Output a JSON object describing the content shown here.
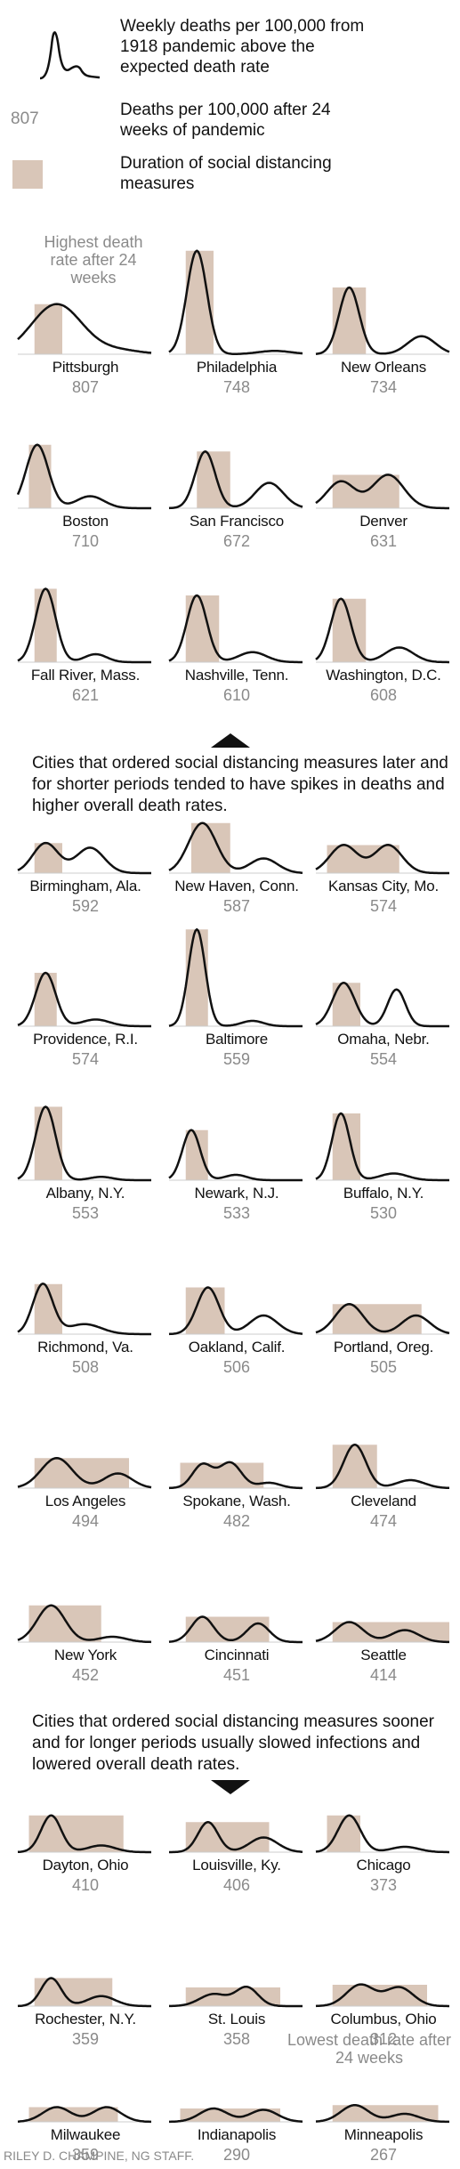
{
  "legend": {
    "curve_text": "Weekly deaths per 100,000 from 1918 pandemic above the expected death rate",
    "number_sample": "807",
    "number_text": "Deaths per 100,000 after 24 weeks of pandemic",
    "box_text": "Duration of social distancing measures"
  },
  "notes": {
    "highest": "Highest death rate after 24 weeks",
    "lowest": "Lowest death rate after 24 weeks",
    "later": "Cities that ordered social distancing measures later and for shorter periods tended to have spikes in deaths and higher overall death rates.",
    "sooner": "Cities that ordered social distancing measures sooner and for longer periods usually slowed infections and lowered overall death rates."
  },
  "credit": "RILEY D. CHAMPINE, NG STAFF.",
  "colors": {
    "curve": "#111111",
    "distancing_box": "#d9c6b8",
    "rate_text": "#8a8a8a",
    "baseline": "#cccccc"
  },
  "chart_data": {
    "type": "line",
    "x_unit": "weeks",
    "xlim": [
      0,
      24
    ],
    "ylabel": "Weekly deaths per 100,000 above expected",
    "cities": [
      {
        "name": "Pittsburgh",
        "rate": 807,
        "distancing": [
          3,
          8
        ],
        "peaks": [
          [
            7,
            75,
            4.5
          ],
          [
            18,
            6,
            4
          ]
        ]
      },
      {
        "name": "Philadelphia",
        "rate": 748,
        "distancing": [
          3,
          8
        ],
        "peaks": [
          [
            5,
            155,
            1.8
          ],
          [
            19,
            5,
            3
          ]
        ]
      },
      {
        "name": "New Orleans",
        "rate": 734,
        "distancing": [
          3,
          9
        ],
        "peaks": [
          [
            6,
            100,
            1.8
          ],
          [
            19,
            27,
            2.5
          ]
        ]
      },
      {
        "name": "Boston",
        "rate": 710,
        "distancing": [
          2,
          6
        ],
        "peaks": [
          [
            3.5,
            95,
            2
          ],
          [
            13,
            18,
            2.5
          ]
        ]
      },
      {
        "name": "San Francisco",
        "rate": 672,
        "distancing": [
          5,
          11
        ],
        "peaks": [
          [
            6.5,
            85,
            1.8
          ],
          [
            18,
            38,
            2.5
          ]
        ]
      },
      {
        "name": "Denver",
        "rate": 631,
        "distancing": [
          3,
          15
        ],
        "peaks": [
          [
            4.5,
            40,
            2.5
          ],
          [
            13,
            50,
            2.8
          ]
        ]
      },
      {
        "name": "Fall River, Mass.",
        "rate": 621,
        "distancing": [
          3,
          7
        ],
        "peaks": [
          [
            5,
            110,
            1.8
          ],
          [
            14,
            12,
            2
          ]
        ]
      },
      {
        "name": "Nashville, Tenn.",
        "rate": 610,
        "distancing": [
          3,
          9
        ],
        "peaks": [
          [
            5,
            100,
            1.8
          ],
          [
            15,
            15,
            2.5
          ]
        ]
      },
      {
        "name": "Washington, D.C.",
        "rate": 608,
        "distancing": [
          3,
          9
        ],
        "peaks": [
          [
            4.5,
            95,
            1.8
          ],
          [
            15,
            22,
            2.5
          ]
        ]
      },
      {
        "name": "Birmingham, Ala.",
        "rate": 592,
        "distancing": [
          3,
          8
        ],
        "peaks": [
          [
            5,
            45,
            2.3
          ],
          [
            13,
            38,
            2.5
          ]
        ]
      },
      {
        "name": "New Haven, Conn.",
        "rate": 587,
        "distancing": [
          4,
          11
        ],
        "peaks": [
          [
            6,
            75,
            2.5
          ],
          [
            17,
            22,
            2.5
          ]
        ]
      },
      {
        "name": "Kansas City, Mo.",
        "rate": 574,
        "distancing": [
          2,
          15
        ],
        "peaks": [
          [
            5,
            42,
            2.5
          ],
          [
            13,
            42,
            2.5
          ]
        ]
      },
      {
        "name": "Providence, R.I.",
        "rate": 574,
        "distancing": [
          3,
          7
        ],
        "peaks": [
          [
            5,
            80,
            1.8
          ],
          [
            14,
            10,
            2.5
          ]
        ]
      },
      {
        "name": "Baltimore",
        "rate": 559,
        "distancing": [
          3,
          7
        ],
        "peaks": [
          [
            5,
            145,
            1.5
          ],
          [
            15,
            8,
            2
          ]
        ]
      },
      {
        "name": "Omaha, Nebr.",
        "rate": 554,
        "distancing": [
          3,
          8
        ],
        "peaks": [
          [
            5,
            65,
            2
          ],
          [
            14.5,
            55,
            1.6
          ]
        ]
      },
      {
        "name": "Albany, N.Y.",
        "rate": 553,
        "distancing": [
          3,
          8
        ],
        "peaks": [
          [
            5,
            110,
            1.8
          ],
          [
            15,
            5,
            2
          ]
        ]
      },
      {
        "name": "Newark, N.J.",
        "rate": 533,
        "distancing": [
          3,
          7
        ],
        "peaks": [
          [
            4,
            75,
            1.6
          ],
          [
            12,
            8,
            2
          ]
        ]
      },
      {
        "name": "Buffalo, N.Y.",
        "rate": 530,
        "distancing": [
          3,
          8
        ],
        "peaks": [
          [
            4.5,
            100,
            1.6
          ],
          [
            14,
            10,
            2.5
          ]
        ]
      },
      {
        "name": "Richmond, Va.",
        "rate": 508,
        "distancing": [
          3,
          8
        ],
        "peaks": [
          [
            4.5,
            75,
            1.8
          ],
          [
            12,
            15,
            3
          ]
        ]
      },
      {
        "name": "Oakland, Calif.",
        "rate": 506,
        "distancing": [
          3,
          10
        ],
        "peaks": [
          [
            7,
            70,
            2
          ],
          [
            17,
            28,
            2.5
          ]
        ]
      },
      {
        "name": "Portland, Oreg.",
        "rate": 505,
        "distancing": [
          3,
          19
        ],
        "peaks": [
          [
            6,
            45,
            2.5
          ],
          [
            18,
            28,
            2.5
          ]
        ]
      },
      {
        "name": "Los Angeles",
        "rate": 494,
        "distancing": [
          3,
          20
        ],
        "peaks": [
          [
            7,
            45,
            2.8
          ],
          [
            18,
            22,
            2.5
          ]
        ]
      },
      {
        "name": "Spokane, Wash.",
        "rate": 482,
        "distancing": [
          2,
          17
        ],
        "peaks": [
          [
            6,
            35,
            1.8
          ],
          [
            11,
            38,
            2
          ],
          [
            18,
            8,
            2
          ]
        ]
      },
      {
        "name": "Cleveland",
        "rate": 474,
        "distancing": [
          3,
          11
        ],
        "peaks": [
          [
            7,
            65,
            2
          ],
          [
            17,
            12,
            2.5
          ]
        ]
      },
      {
        "name": "New York",
        "rate": 452,
        "distancing": [
          2,
          15
        ],
        "peaks": [
          [
            6,
            55,
            2.5
          ],
          [
            17,
            8,
            2.5
          ]
        ]
      },
      {
        "name": "Cincinnati",
        "rate": 451,
        "distancing": [
          3,
          18
        ],
        "peaks": [
          [
            6,
            38,
            2
          ],
          [
            16,
            28,
            2
          ]
        ]
      },
      {
        "name": "Seattle",
        "rate": 414,
        "distancing": [
          3,
          24
        ],
        "peaks": [
          [
            6,
            30,
            2.5
          ],
          [
            16,
            18,
            2.5
          ]
        ]
      },
      {
        "name": "Dayton, Ohio",
        "rate": 410,
        "distancing": [
          2,
          19
        ],
        "peaks": [
          [
            6,
            55,
            1.8
          ],
          [
            15,
            10,
            2.5
          ]
        ]
      },
      {
        "name": "Louisville, Ky.",
        "rate": 406,
        "distancing": [
          3,
          18
        ],
        "peaks": [
          [
            7,
            45,
            1.8
          ],
          [
            17,
            22,
            2.5
          ]
        ]
      },
      {
        "name": "Chicago",
        "rate": 373,
        "distancing": [
          2,
          8
        ],
        "peaks": [
          [
            6,
            55,
            2
          ],
          [
            16,
            8,
            2.5
          ]
        ]
      },
      {
        "name": "Rochester, N.Y.",
        "rate": 359,
        "distancing": [
          3,
          17
        ],
        "peaks": [
          [
            6,
            42,
            1.8
          ],
          [
            15,
            15,
            2.5
          ]
        ]
      },
      {
        "name": "St. Louis",
        "rate": 358,
        "distancing": [
          3,
          20
        ],
        "peaks": [
          [
            8,
            18,
            2.5
          ],
          [
            14,
            28,
            2
          ]
        ]
      },
      {
        "name": "Columbus, Ohio",
        "rate": 312,
        "distancing": [
          3,
          20
        ],
        "peaks": [
          [
            8,
            32,
            2.5
          ],
          [
            15,
            28,
            2.5
          ]
        ]
      },
      {
        "name": "Milwaukee",
        "rate": 359,
        "distancing": [
          2,
          18
        ],
        "peaks": [
          [
            7,
            22,
            2.5
          ],
          [
            16,
            22,
            2.5
          ]
        ]
      },
      {
        "name": "Indianapolis",
        "rate": 290,
        "distancing": [
          2,
          20
        ],
        "peaks": [
          [
            8,
            20,
            2.5
          ],
          [
            17,
            18,
            2.5
          ]
        ]
      },
      {
        "name": "Minneapolis",
        "rate": 267,
        "distancing": [
          3,
          22
        ],
        "peaks": [
          [
            7,
            25,
            2.5
          ],
          [
            16,
            12,
            2.5
          ]
        ]
      }
    ]
  }
}
